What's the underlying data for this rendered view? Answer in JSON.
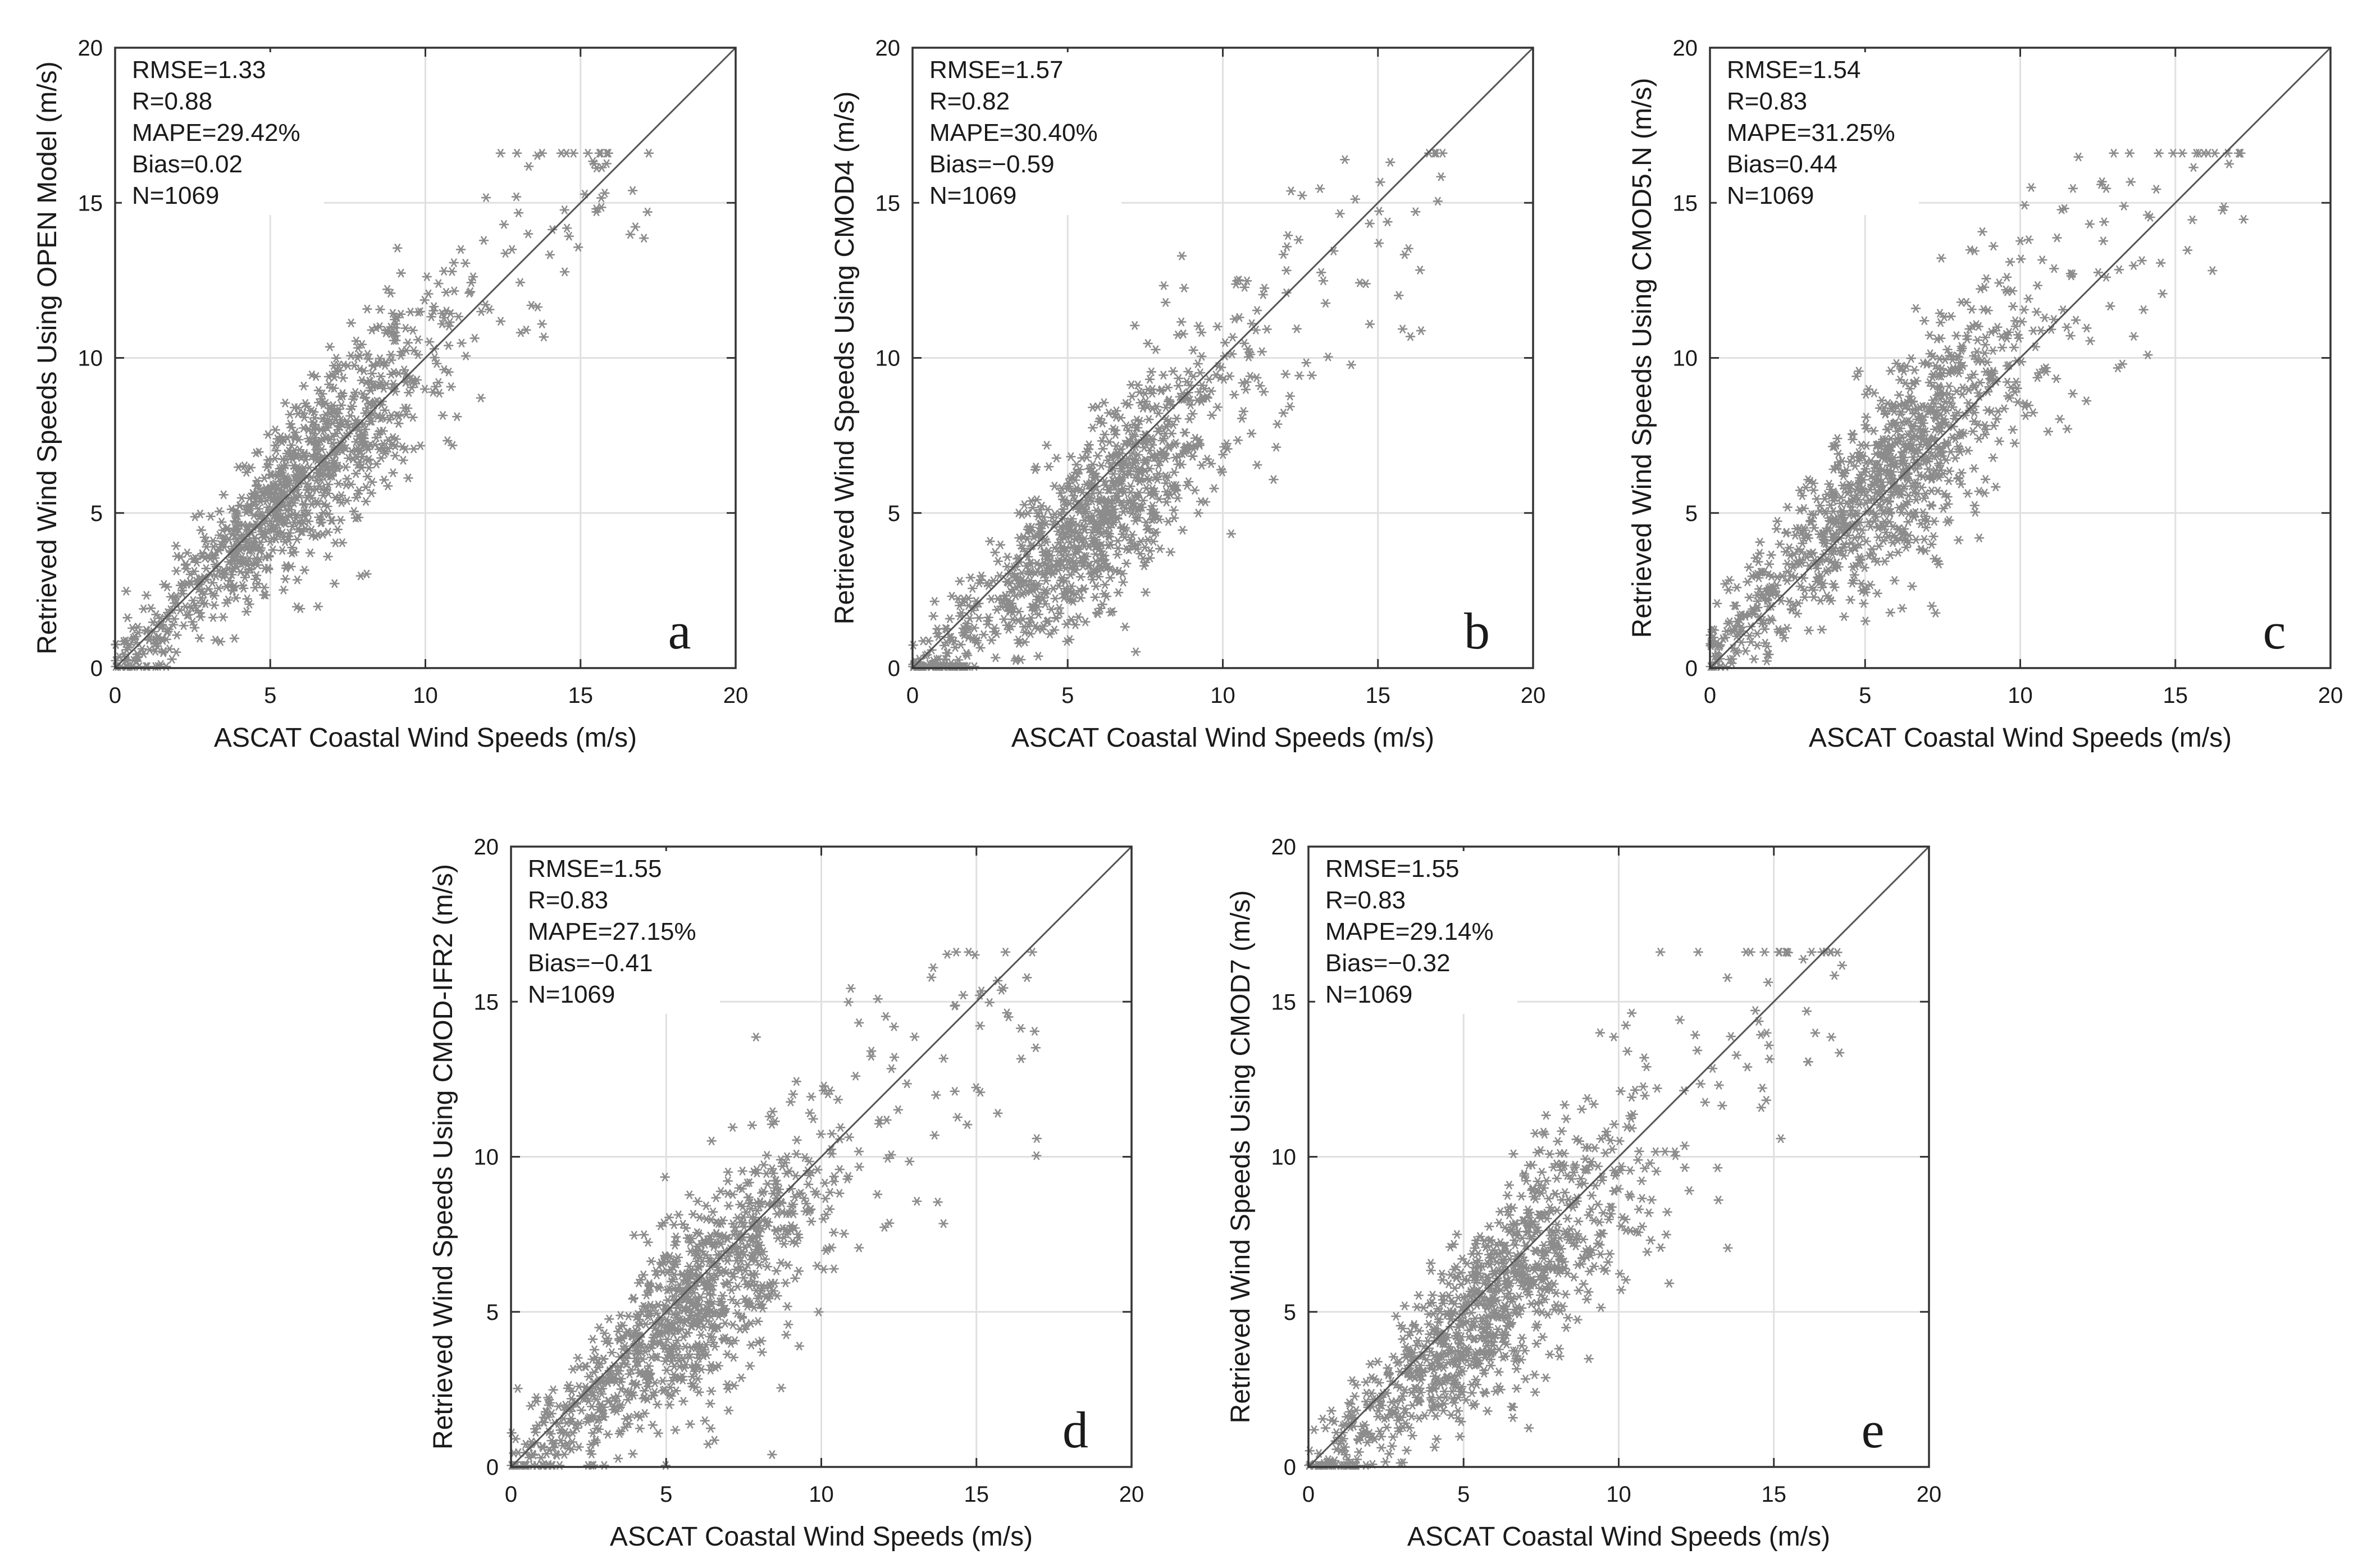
{
  "colors": {
    "points": "#8c8c8c",
    "grid": "#e0e0e0",
    "frame": "#333333",
    "identity_line": "#555555",
    "background": "#ffffff"
  },
  "chart_data": [
    {
      "type": "scatter",
      "panel_label": "a",
      "xlabel": "ASCAT Coastal Wind Speeds (m/s)",
      "ylabel": "Retrieved Wind Speeds Using OPEN Model (m/s)",
      "xlim": [
        0,
        20
      ],
      "ylim": [
        0,
        20
      ],
      "xticks": [
        "0",
        "5",
        "10",
        "15",
        "20"
      ],
      "yticks": [
        "0",
        "5",
        "10",
        "15",
        "20"
      ],
      "grid": true,
      "identity_line": true,
      "marker": "asterisk",
      "stats": [
        "RMSE=1.33",
        "R=0.88",
        "MAPE=29.42%",
        "Bias=0.02",
        "N=1069"
      ],
      "regression": {
        "slope": 1.0,
        "bias": 0.02,
        "noise_sd": 1.25,
        "n": 1069
      }
    },
    {
      "type": "scatter",
      "panel_label": "b",
      "xlabel": "ASCAT Coastal Wind Speeds (m/s)",
      "ylabel": "Retrieved Wind Speeds Using CMOD4 (m/s)",
      "xlim": [
        0,
        20
      ],
      "ylim": [
        0,
        20
      ],
      "xticks": [
        "0",
        "5",
        "10",
        "15",
        "20"
      ],
      "yticks": [
        "0",
        "5",
        "10",
        "15",
        "20"
      ],
      "grid": true,
      "identity_line": true,
      "marker": "asterisk",
      "stats": [
        "RMSE=1.57",
        "R=0.82",
        "MAPE=30.40%",
        "Bias=−0.59",
        "N=1069"
      ],
      "regression": {
        "slope": 0.94,
        "bias": -0.59,
        "noise_sd": 1.4,
        "n": 1069
      }
    },
    {
      "type": "scatter",
      "panel_label": "c",
      "xlabel": "ASCAT Coastal Wind Speeds (m/s)",
      "ylabel": "Retrieved Wind Speeds Using CMOD5.N (m/s)",
      "xlim": [
        0,
        20
      ],
      "ylim": [
        0,
        20
      ],
      "xticks": [
        "0",
        "5",
        "10",
        "15",
        "20"
      ],
      "yticks": [
        "0",
        "5",
        "10",
        "15",
        "20"
      ],
      "grid": true,
      "identity_line": true,
      "marker": "asterisk",
      "stats": [
        "RMSE=1.54",
        "R=0.83",
        "MAPE=31.25%",
        "Bias=0.44",
        "N=1069"
      ],
      "regression": {
        "slope": 1.0,
        "bias": 0.44,
        "noise_sd": 1.45,
        "n": 1069
      }
    },
    {
      "type": "scatter",
      "panel_label": "d",
      "xlabel": "ASCAT Coastal Wind Speeds (m/s)",
      "ylabel": "Retrieved Wind Speeds Using CMOD-IFR2 (m/s)",
      "xlim": [
        0,
        20
      ],
      "ylim": [
        0,
        20
      ],
      "xticks": [
        "0",
        "5",
        "10",
        "15",
        "20"
      ],
      "yticks": [
        "0",
        "5",
        "10",
        "15",
        "20"
      ],
      "grid": true,
      "identity_line": true,
      "marker": "asterisk",
      "stats": [
        "RMSE=1.55",
        "R=0.83",
        "MAPE=27.15%",
        "Bias=−0.41",
        "N=1069"
      ],
      "regression": {
        "slope": 0.96,
        "bias": -0.41,
        "noise_sd": 1.45,
        "n": 1069
      }
    },
    {
      "type": "scatter",
      "panel_label": "e",
      "xlabel": "ASCAT Coastal Wind Speeds (m/s)",
      "ylabel": "Retrieved Wind Speeds Using CMOD7 (m/s)",
      "xlim": [
        0,
        20
      ],
      "ylim": [
        0,
        20
      ],
      "xticks": [
        "0",
        "5",
        "10",
        "15",
        "20"
      ],
      "yticks": [
        "0",
        "5",
        "10",
        "15",
        "20"
      ],
      "grid": true,
      "identity_line": true,
      "marker": "asterisk",
      "stats": [
        "RMSE=1.55",
        "R=0.83",
        "MAPE=29.14%",
        "Bias=−0.32",
        "N=1069"
      ],
      "regression": {
        "slope": 0.97,
        "bias": -0.32,
        "noise_sd": 1.45,
        "n": 1069
      }
    }
  ]
}
